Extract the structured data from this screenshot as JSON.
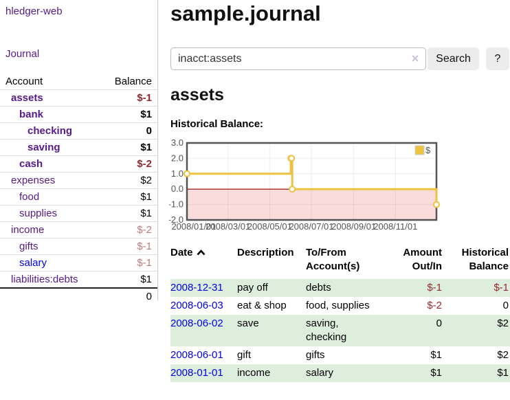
{
  "app": {
    "title": "hledger-web"
  },
  "colors": {
    "link_purple": "#551a8b",
    "link_blue": "#0000ee",
    "negative_strong": "#97282d",
    "negative_soft": "#c07a7a",
    "row_stripe_green": "#ddeedd",
    "chart_series_gold": "#edc240",
    "chart_negative_fill": "#fbdcdc",
    "chart_zero_line": "#8b0000"
  },
  "sidebar": {
    "journal_link": "Journal",
    "headers": {
      "account": "Account",
      "balance": "Balance"
    },
    "accounts": [
      {
        "label": "assets",
        "balance": "$-1",
        "depth": 1,
        "emph": true,
        "balance_tone": "neg",
        "link_tone": "visited"
      },
      {
        "label": "bank",
        "balance": "$1",
        "depth": 2,
        "emph": true,
        "balance_tone": null,
        "link_tone": "visited"
      },
      {
        "label": "checking",
        "balance": "0",
        "depth": 3,
        "emph": true,
        "balance_tone": null,
        "link_tone": "visited"
      },
      {
        "label": "saving",
        "balance": "$1",
        "depth": 3,
        "emph": true,
        "balance_tone": null,
        "link_tone": "visited"
      },
      {
        "label": "cash",
        "balance": "$-2",
        "depth": 2,
        "emph": true,
        "balance_tone": "neg",
        "link_tone": "visited"
      },
      {
        "label": "expenses",
        "balance": "$2",
        "depth": 1,
        "emph": false,
        "balance_tone": null,
        "link_tone": "visited"
      },
      {
        "label": "food",
        "balance": "$1",
        "depth": 2,
        "emph": false,
        "balance_tone": null,
        "link_tone": "visited"
      },
      {
        "label": "supplies",
        "balance": "$1",
        "depth": 2,
        "emph": false,
        "balance_tone": null,
        "link_tone": "visited"
      },
      {
        "label": "income",
        "balance": "$-2",
        "depth": 1,
        "emph": false,
        "balance_tone": "neg-soft",
        "link_tone": "visited"
      },
      {
        "label": "gifts",
        "balance": "$-1",
        "depth": 2,
        "emph": false,
        "balance_tone": "neg-soft",
        "link_tone": "visited"
      },
      {
        "label": "salary",
        "balance": "$-1",
        "depth": 2,
        "emph": false,
        "balance_tone": "neg-soft",
        "link_tone": "new"
      },
      {
        "label": "liabilities:debts",
        "balance": "$1",
        "depth": 1,
        "emph": false,
        "balance_tone": null,
        "link_tone": "visited"
      }
    ],
    "total": "0"
  },
  "main": {
    "title": "sample.journal",
    "search": {
      "value": "inacct:assets",
      "clear_icon": "✕",
      "button_label": "Search",
      "help_label": "?"
    },
    "account_heading": "assets",
    "chart_label": "Historical Balance:"
  },
  "chart_data": {
    "type": "line",
    "title": "Historical Balance",
    "steps": true,
    "legend": {
      "position": "top-right",
      "entries": [
        "$"
      ]
    },
    "ylim": [
      -2.0,
      3.0
    ],
    "yticks": [
      {
        "label": "3.0",
        "value": 3
      },
      {
        "label": "2.0",
        "value": 2
      },
      {
        "label": "1.0",
        "value": 1
      },
      {
        "label": "0.0",
        "value": 0
      },
      {
        "label": "-1.0",
        "value": -1
      },
      {
        "label": "-2.0",
        "value": -2
      }
    ],
    "x_max_day": 365,
    "xticks": [
      {
        "label": "2008/01/01",
        "day": 0
      },
      {
        "label": "2008/03/01",
        "day": 60
      },
      {
        "label": "2008/05/01",
        "day": 121
      },
      {
        "label": "2008/07/01",
        "day": 182
      },
      {
        "label": "2008/09/01",
        "day": 244
      },
      {
        "label": "2008/11/01",
        "day": 305
      }
    ],
    "series": [
      {
        "name": "$",
        "color": "#edc240",
        "points": [
          {
            "date": "2008-01-01",
            "day": 0,
            "value": 1
          },
          {
            "date": "2008-06-01",
            "day": 152,
            "value": 2
          },
          {
            "date": "2008-06-02",
            "day": 153,
            "value": 2
          },
          {
            "date": "2008-06-03",
            "day": 154,
            "value": 0
          },
          {
            "date": "2008-12-31",
            "day": 365,
            "value": -1
          }
        ]
      }
    ],
    "negative_fill": "#fbdcdc",
    "zero_line_color": "#8b0000",
    "grid": true
  },
  "register": {
    "headers": [
      "Date",
      "Description",
      "To/From Account(s)",
      "Amount Out/In",
      "Historical Balance"
    ],
    "sort": {
      "column": "Date",
      "direction": "ascending"
    },
    "rows": [
      {
        "date": "2008-12-31",
        "description": "pay off",
        "accounts": "debts",
        "amount": "$-1",
        "amount_tone": "neg",
        "balance": "$-1",
        "balance_tone": "neg"
      },
      {
        "date": "2008-06-03",
        "description": "eat & shop",
        "accounts": "food, supplies",
        "amount": "$-2",
        "amount_tone": "neg",
        "balance": "0",
        "balance_tone": null
      },
      {
        "date": "2008-06-02",
        "description": "save",
        "accounts": "saving, checking",
        "amount": "0",
        "amount_tone": null,
        "balance": "$2",
        "balance_tone": null
      },
      {
        "date": "2008-06-01",
        "description": "gift",
        "accounts": "gifts",
        "amount": "$1",
        "amount_tone": null,
        "balance": "$2",
        "balance_tone": null
      },
      {
        "date": "2008-01-01",
        "description": "income",
        "accounts": "salary",
        "amount": "$1",
        "amount_tone": null,
        "balance": "$1",
        "balance_tone": null
      }
    ]
  }
}
